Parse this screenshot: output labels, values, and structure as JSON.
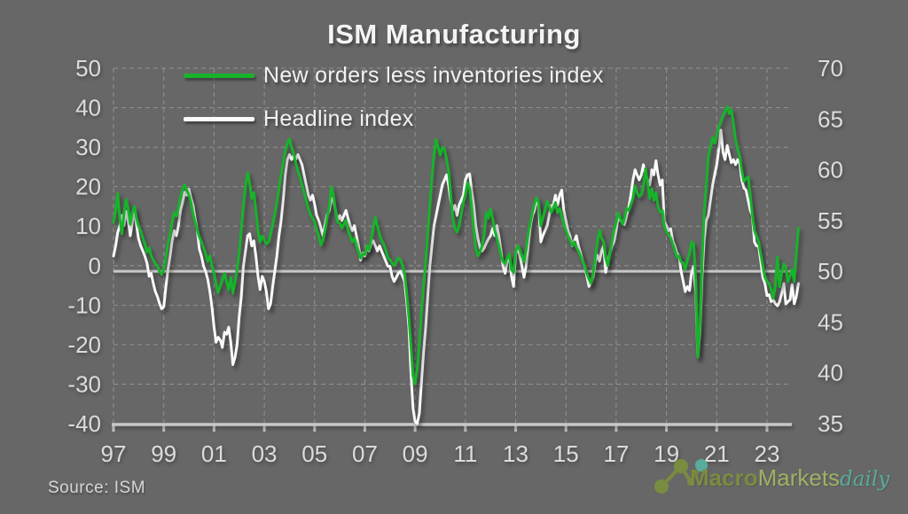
{
  "chart_data": {
    "type": "line",
    "title": "ISM Manufacturing",
    "source": "Source:  ISM",
    "grid": "dashed",
    "legend_position": "top-left-inside",
    "x": {
      "start_year": 1997,
      "frequency": "monthly",
      "tick_interval_years": 2,
      "tick_labels": [
        "97",
        "99",
        "01",
        "03",
        "05",
        "07",
        "09",
        "11",
        "13",
        "15",
        "17",
        "19",
        "21",
        "23"
      ]
    },
    "left_axis": {
      "min": -40,
      "max": 50,
      "label_ticks": [
        50,
        40,
        30,
        20,
        10,
        0,
        -10,
        -20,
        -30,
        -40
      ]
    },
    "right_axis": {
      "min": 35,
      "max": 70,
      "label_ticks": [
        70,
        65,
        60,
        55,
        50,
        45,
        40,
        35
      ]
    },
    "reference_line": {
      "axis": "right",
      "value": 50
    },
    "series": [
      {
        "name": "Headline index",
        "axis": "right",
        "color": "#fafafa",
        "values": [
          51.5,
          52.5,
          53.8,
          54.5,
          55.5,
          54.5,
          55.9,
          55.0,
          53.5,
          54.8,
          55.9,
          54.5,
          53.2,
          52.5,
          52.0,
          51.5,
          50.8,
          49.5,
          49.8,
          48.8,
          48.0,
          47.5,
          46.8,
          46.3,
          46.5,
          48.5,
          50.2,
          51.5,
          53.0,
          54.0,
          53.5,
          54.5,
          56.0,
          56.8,
          57.8,
          57.5,
          58.1,
          57.2,
          56.5,
          55.2,
          54.0,
          52.2,
          51.5,
          50.5,
          50.0,
          49.2,
          48.0,
          46.5,
          44.5,
          43.0,
          43.5,
          43.2,
          42.5,
          44.0,
          43.8,
          44.5,
          43.0,
          40.8,
          41.5,
          42.8,
          45.5,
          47.5,
          50.5,
          52.0,
          53.5,
          53.7,
          52.5,
          53.0,
          51.5,
          49.5,
          48.2,
          49.5,
          49.0,
          48.0,
          46.3,
          46.8,
          48.5,
          50.0,
          51.5,
          53.5,
          55.0,
          57.0,
          59.5,
          61.0,
          61.5,
          61.0,
          61.4,
          61.0,
          61.5,
          61.0,
          60.5,
          59.5,
          58.5,
          57.5,
          57.0,
          57.5,
          56.6,
          55.5,
          55.0,
          54.3,
          53.5,
          54.5,
          55.5,
          56.0,
          57.2,
          57.0,
          56.0,
          55.0,
          55.5,
          55.0,
          55.5,
          56.0,
          55.2,
          54.5,
          54.0,
          54.5,
          53.5,
          52.5,
          51.1,
          51.8,
          51.5,
          52.5,
          52.0,
          52.8,
          53.0,
          52.5,
          52.0,
          52.5,
          52.0,
          51.5,
          51.0,
          50.5,
          50.5,
          49.5,
          49.0,
          49.4,
          49.8,
          50.0,
          49.5,
          49.0,
          47.0,
          44.5,
          40.0,
          36.5,
          35.2,
          35.0,
          36.0,
          39.0,
          42.0,
          44.5,
          47.5,
          50.5,
          52.5,
          54.5,
          55.5,
          56.5,
          57.5,
          58.5,
          59.0,
          59.5,
          58.5,
          57.0,
          56.0,
          56.5,
          55.5,
          56.5,
          57.0,
          57.5,
          59.0,
          59.5,
          59.6,
          58.0,
          56.5,
          54.5,
          53.2,
          52.3,
          52.0,
          52.3,
          52.8,
          53.2,
          53.5,
          54.2,
          53.5,
          54.5,
          53.5,
          52.0,
          50.5,
          49.8,
          51.0,
          51.5,
          49.5,
          48.5,
          51.7,
          52.5,
          51.5,
          50.5,
          49.4,
          50.5,
          52.5,
          54.5,
          55.5,
          56.0,
          56.9,
          56.5,
          52.9,
          53.5,
          54.0,
          54.5,
          55.5,
          56.5,
          56.5,
          57.5,
          56.5,
          57.5,
          58.0,
          56.0,
          55.0,
          54.0,
          53.5,
          52.5,
          53.0,
          53.5,
          52.5,
          51.8,
          51.0,
          50.5,
          49.5,
          48.5,
          48.9,
          49.5,
          51.0,
          51.6,
          51.0,
          52.0,
          52.5,
          49.9,
          51.0,
          51.8,
          52.5,
          52.9,
          54.0,
          55.5,
          55.0,
          54.8,
          54.6,
          55.5,
          56.3,
          57.5,
          59.0,
          60.0,
          59.5,
          59.0,
          59.5,
          60.5,
          59.5,
          59.0,
          58.5,
          60.0,
          59.5,
          60.9,
          59.5,
          58.5,
          59.0,
          54.9,
          54.5,
          54.0,
          54.2,
          53.0,
          52.5,
          51.8,
          51.5,
          50.0,
          49.0,
          48.0,
          48.5,
          48.1,
          49.9,
          50.5,
          48.0,
          41.6,
          44.0,
          49.4,
          53.0,
          55.0,
          55.5,
          57.0,
          58.5,
          59.5,
          60.5,
          62.0,
          63.9,
          61.7,
          61.0,
          62.4,
          61.5,
          60.7,
          61.0,
          60.5,
          61.0,
          60.6,
          59.0,
          58.2,
          58.0,
          57.0,
          56.0,
          55.5,
          52.9,
          52.5,
          52.5,
          51.0,
          49.4,
          48.8,
          47.6,
          47.7,
          47.0,
          47.2,
          46.8,
          46.6,
          47.0,
          47.8,
          48.8,
          46.8,
          47.0,
          47.2,
          48.7,
          46.8,
          47.5,
          48.8
        ]
      },
      {
        "name": "New orders less inventories index",
        "axis": "left",
        "color": "#16b42a",
        "values": [
          11.0,
          14.0,
          18.3,
          12.0,
          8.1,
          13.0,
          16.8,
          14.5,
          10.5,
          13.5,
          15.0,
          12.0,
          10.0,
          8.8,
          7.0,
          5.5,
          3.4,
          4.5,
          2.5,
          1.5,
          0.5,
          0.0,
          -1.5,
          -2.2,
          -1.0,
          2.0,
          5.5,
          8.0,
          11.0,
          13.5,
          12.5,
          14.5,
          17.5,
          19.5,
          20.5,
          19.0,
          18.0,
          16.0,
          13.0,
          11.0,
          9.0,
          7.3,
          6.0,
          4.5,
          3.0,
          1.1,
          2.5,
          0.0,
          -2.0,
          -4.5,
          -6.8,
          -5.0,
          -3.5,
          -2.0,
          -4.0,
          -6.1,
          -3.0,
          -7.0,
          -4.0,
          -1.0,
          3.0,
          9.0,
          15.0,
          20.0,
          23.5,
          21.0,
          17.0,
          18.5,
          14.0,
          9.0,
          6.0,
          7.5,
          6.5,
          5.5,
          6.0,
          8.0,
          10.5,
          13.0,
          16.0,
          19.5,
          23.0,
          26.0,
          29.0,
          31.0,
          32.1,
          30.0,
          28.5,
          26.0,
          24.0,
          22.5,
          20.5,
          18.5,
          16.5,
          14.5,
          13.0,
          12.0,
          11.2,
          9.0,
          7.5,
          5.2,
          6.5,
          9.0,
          12.0,
          15.0,
          20.0,
          18.0,
          14.0,
          11.0,
          10.8,
          9.5,
          10.5,
          11.5,
          9.0,
          7.5,
          6.0,
          7.0,
          5.0,
          3.5,
          1.9,
          3.0,
          2.8,
          5.0,
          4.0,
          6.5,
          9.5,
          12.2,
          10.0,
          8.0,
          6.5,
          5.5,
          4.0,
          2.0,
          1.5,
          0.7,
          0.0,
          1.0,
          2.0,
          1.5,
          0.0,
          -2.0,
          -7.0,
          -13.0,
          -20.0,
          -28.0,
          -30.0,
          -26.0,
          -20.0,
          -12.0,
          -5.0,
          0.5,
          8.0,
          15.0,
          22.0,
          28.0,
          32.0,
          30.0,
          28.0,
          30.0,
          29.5,
          27.0,
          24.0,
          18.0,
          12.0,
          9.5,
          8.5,
          10.0,
          13.0,
          16.0,
          18.0,
          21.0,
          19.5,
          15.0,
          9.0,
          4.5,
          2.5,
          3.5,
          5.0,
          8.0,
          13.5,
          12.0,
          14.4,
          12.0,
          9.0,
          7.0,
          5.0,
          2.5,
          1.0,
          0.5,
          2.0,
          3.0,
          -1.0,
          -1.7,
          3.4,
          5.0,
          4.0,
          2.5,
          1.0,
          4.0,
          8.0,
          11.0,
          13.5,
          15.7,
          17.2,
          16.0,
          10.1,
          12.0,
          14.0,
          16.4,
          15.0,
          13.5,
          14.5,
          16.0,
          13.4,
          14.5,
          12.5,
          10.5,
          8.9,
          7.5,
          6.5,
          5.1,
          6.0,
          4.5,
          3.7,
          2.5,
          1.0,
          0.0,
          -2.0,
          -3.4,
          -4.5,
          -2.0,
          2.0,
          6.0,
          8.9,
          7.0,
          6.0,
          2.0,
          0.0,
          3.0,
          6.0,
          8.9,
          11.0,
          13.4,
          12.0,
          10.5,
          12.0,
          14.5,
          14.0,
          15.5,
          17.0,
          20.2,
          18.5,
          17.5,
          18.0,
          20.0,
          24.6,
          21.0,
          17.0,
          19.5,
          16.5,
          18.5,
          15.0,
          13.5,
          14.0,
          10.0,
          8.5,
          7.8,
          7.0,
          5.5,
          4.0,
          2.2,
          2.5,
          1.0,
          0.7,
          -1.0,
          1.5,
          3.0,
          6.0,
          5.5,
          -4.0,
          -23.2,
          -15.0,
          0.5,
          13.4,
          20.0,
          27.6,
          30.0,
          32.5,
          31.0,
          33.0,
          35.0,
          36.5,
          38.0,
          39.0,
          40.3,
          38.5,
          39.5,
          35.9,
          32.0,
          29.5,
          27.6,
          24.0,
          21.3,
          22.0,
          22.5,
          18.0,
          13.0,
          8.9,
          7.5,
          6.0,
          3.0,
          0.0,
          -2.9,
          -4.0,
          -4.5,
          -6.1,
          -8.3,
          -5.0,
          2.2,
          -5.4,
          -2.0,
          0.5,
          -0.5,
          -4.0,
          -2.5,
          -1.0,
          -4.0,
          3.0,
          9.5
        ]
      }
    ]
  },
  "legend": {
    "item_green": "New orders less inventories index",
    "item_white": "Headline index"
  },
  "logo": {
    "macro": "Macro",
    "markets": "Markets",
    "daily": "daily",
    "olive": "#7c8f3d",
    "light_green": "#a3b763",
    "teal": "#56b2a1"
  },
  "colors": {
    "background": "#676767",
    "grid": "#a9a9a9",
    "axis": "#c8c8c8",
    "label": "#dcdcdc",
    "title": "#f4f4f4",
    "green_series": "#16b42a",
    "white_series": "#fafafa"
  }
}
